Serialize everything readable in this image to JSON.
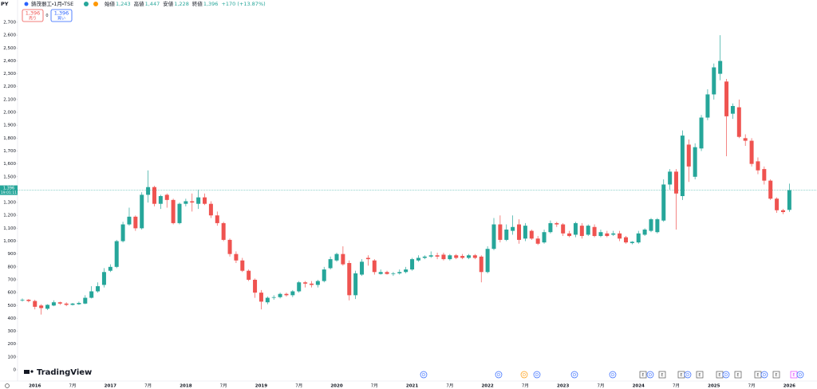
{
  "header": {
    "symbol": "PY",
    "title": "鋳茂器工・1月・TSE",
    "ohlc": [
      "始値",
      "1,243",
      "高値",
      "1,447",
      "安値",
      "1,228",
      "終値",
      "1,396",
      "+170 (+13.87%)"
    ],
    "sell_price": "1,396",
    "sell_label": "売り",
    "spread": "0",
    "buy_price": "1,396",
    "buy_label": "買い",
    "price_label": "1,396",
    "countdown": "19:01:11",
    "logo": "TradingView"
  },
  "events": [
    "D",
    "D",
    "D",
    "D",
    "D",
    "D",
    "E",
    "D",
    "E",
    "E",
    "D",
    "E",
    "E",
    "D",
    "E",
    "E",
    "D",
    "E",
    "E",
    "D"
  ],
  "chart_data": {
    "type": "candlestick",
    "up_color": "#26a69a",
    "down_color": "#ef5350",
    "grid": false,
    "categories": [
      null,
      null,
      "2016",
      null,
      null,
      null,
      null,
      null,
      "7月",
      null,
      null,
      null,
      null,
      null,
      "2017",
      null,
      null,
      null,
      null,
      null,
      "7月",
      null,
      null,
      null,
      null,
      null,
      "2018",
      null,
      null,
      null,
      null,
      null,
      "7月",
      null,
      null,
      null,
      null,
      null,
      "2019",
      null,
      null,
      null,
      null,
      null,
      "7月",
      null,
      null,
      null,
      null,
      null,
      "2020",
      null,
      null,
      null,
      null,
      null,
      "7月",
      null,
      null,
      null,
      null,
      null,
      "2021",
      null,
      null,
      null,
      null,
      null,
      "7月",
      null,
      null,
      null,
      null,
      null,
      "2022",
      null,
      null,
      null,
      null,
      null,
      "7月",
      null,
      null,
      null,
      null,
      null,
      "2023",
      null,
      null,
      null,
      null,
      null,
      "7月",
      null,
      null,
      null,
      null,
      null,
      "2024",
      null,
      null,
      null,
      null,
      null,
      "7月",
      null,
      null,
      null,
      null,
      null,
      "2025",
      null,
      null,
      null,
      null,
      null,
      "7月",
      null,
      null,
      null,
      null,
      null,
      "2026"
    ],
    "open": [
      540,
      545,
      535,
      500,
      475,
      500,
      525,
      515,
      505,
      510,
      515,
      560,
      610,
      660,
      770,
      800,
      1000,
      1130,
      1190,
      1100,
      1360,
      1420,
      1290,
      1360,
      1320,
      1140,
      1290,
      1310,
      1290,
      1340,
      1290,
      1200,
      1140,
      1010,
      900,
      850,
      770,
      700,
      600,
      525,
      560,
      565,
      590,
      580,
      610,
      680,
      670,
      660,
      690,
      790,
      850,
      900,
      830,
      580,
      740,
      870,
      850,
      745,
      760,
      745,
      750,
      760,
      780,
      850,
      870,
      880,
      890,
      895,
      860,
      890,
      885,
      870,
      890,
      880,
      760,
      940,
      1130,
      1010,
      1080,
      1130,
      1020,
      1080,
      1020,
      990,
      1070,
      1140,
      1130,
      1060,
      1050,
      1120,
      1050,
      1110,
      1040,
      1060,
      1050,
      1060,
      1030,
      985,
      990,
      1050,
      1080,
      1070,
      1160,
      1440,
      1540,
      1350,
      1750,
      1500,
      1720,
      1960,
      2140,
      2300,
      2240,
      1990,
      2040,
      1800,
      1780,
      1620,
      1560,
      1470,
      1330,
      1240,
      1243
    ],
    "high": [
      555,
      550,
      545,
      510,
      510,
      540,
      530,
      525,
      520,
      530,
      580,
      650,
      680,
      790,
      820,
      1010,
      1150,
      1260,
      1200,
      1380,
      1550,
      1430,
      1360,
      1370,
      1330,
      1300,
      1330,
      1370,
      1400,
      1370,
      1310,
      1230,
      1150,
      1020,
      920,
      870,
      780,
      710,
      620,
      570,
      580,
      600,
      600,
      620,
      690,
      690,
      690,
      700,
      800,
      880,
      910,
      960,
      850,
      770,
      860,
      890,
      860,
      780,
      770,
      760,
      780,
      800,
      870,
      890,
      890,
      920,
      910,
      910,
      900,
      900,
      900,
      900,
      900,
      890,
      960,
      1180,
      1200,
      1130,
      1200,
      1170,
      1140,
      1090,
      1040,
      1090,
      1160,
      1150,
      1140,
      1080,
      1150,
      1140,
      1130,
      1130,
      1090,
      1080,
      1080,
      1080,
      1040,
      1000,
      1080,
      1100,
      1180,
      1180,
      1480,
      1560,
      1560,
      1860,
      1790,
      1760,
      1980,
      2180,
      2380,
      2600,
      2260,
      2070,
      2100,
      1830,
      1800,
      1650,
      1580,
      1480,
      1340,
      1250,
      1447
    ],
    "low": [
      530,
      525,
      470,
      430,
      465,
      495,
      505,
      495,
      500,
      505,
      510,
      555,
      600,
      640,
      760,
      790,
      990,
      1120,
      1080,
      1090,
      1300,
      1270,
      1250,
      1260,
      1130,
      1130,
      1270,
      1230,
      1250,
      1280,
      1180,
      1120,
      1000,
      880,
      830,
      760,
      690,
      560,
      470,
      510,
      545,
      555,
      570,
      565,
      600,
      640,
      640,
      640,
      680,
      780,
      840,
      810,
      540,
      550,
      730,
      810,
      740,
      740,
      740,
      730,
      740,
      750,
      770,
      840,
      860,
      870,
      860,
      850,
      850,
      860,
      860,
      860,
      860,
      680,
      750,
      930,
      990,
      1000,
      1050,
      980,
      1000,
      1010,
      970,
      980,
      1060,
      1110,
      1040,
      1030,
      1030,
      1020,
      1040,
      1030,
      1030,
      1030,
      1040,
      1000,
      980,
      975,
      980,
      1040,
      1070,
      1060,
      1150,
      1400,
      1090,
      1320,
      1460,
      1480,
      1700,
      1940,
      2100,
      2250,
      1660,
      1950,
      1800,
      1740,
      1580,
      1520,
      1440,
      1320,
      1220,
      1210,
      1228
    ],
    "close": [
      545,
      535,
      490,
      480,
      505,
      525,
      515,
      505,
      515,
      520,
      560,
      610,
      650,
      760,
      800,
      1000,
      1130,
      1190,
      1100,
      1360,
      1420,
      1290,
      1350,
      1320,
      1140,
      1290,
      1310,
      1300,
      1340,
      1290,
      1200,
      1140,
      1010,
      900,
      850,
      770,
      700,
      600,
      530,
      560,
      565,
      590,
      580,
      610,
      680,
      670,
      660,
      690,
      780,
      860,
      900,
      820,
      580,
      750,
      840,
      860,
      760,
      760,
      745,
      750,
      760,
      780,
      860,
      870,
      880,
      890,
      880,
      860,
      890,
      870,
      870,
      890,
      870,
      760,
      940,
      1130,
      1010,
      1090,
      1110,
      1010,
      1120,
      1020,
      980,
      1070,
      1140,
      1130,
      1060,
      1040,
      1140,
      1040,
      1120,
      1040,
      1070,
      1040,
      1060,
      1020,
      990,
      995,
      1060,
      1090,
      1170,
      1170,
      1440,
      1540,
      1370,
      1820,
      1580,
      1730,
      1960,
      2140,
      2350,
      2400,
      1970,
      2050,
      1810,
      1780,
      1600,
      1550,
      1470,
      1330,
      1240,
      1226,
      1396
    ],
    "ylim": [
      0,
      2700
    ],
    "yticks": [
      0,
      100,
      200,
      300,
      400,
      500,
      600,
      700,
      800,
      900,
      {
        "value": 1000,
        "label": "1,000"
      },
      {
        "value": 1100,
        "label": "1,100"
      },
      {
        "value": 1200,
        "label": "1,200"
      },
      {
        "value": 1300,
        "label": "1,300"
      },
      {
        "value": 1400,
        "label": "1,400"
      },
      {
        "value": 1500,
        "label": "1,500"
      },
      {
        "value": 1600,
        "label": "1,600"
      },
      {
        "value": 1700,
        "label": "1,700"
      },
      {
        "value": 1800,
        "label": "1,800"
      },
      {
        "value": 1900,
        "label": "1,900"
      },
      {
        "value": 2000,
        "label": "2,000"
      },
      {
        "value": 2100,
        "label": "2,100"
      },
      {
        "value": 2200,
        "label": "2,200"
      },
      {
        "value": 2300,
        "label": "2,300"
      },
      {
        "value": 2400,
        "label": "2,400"
      },
      {
        "value": 2500,
        "label": "2,500"
      },
      {
        "value": 2600,
        "label": "2,600"
      },
      {
        "value": 2700,
        "label": "2,700"
      }
    ]
  }
}
